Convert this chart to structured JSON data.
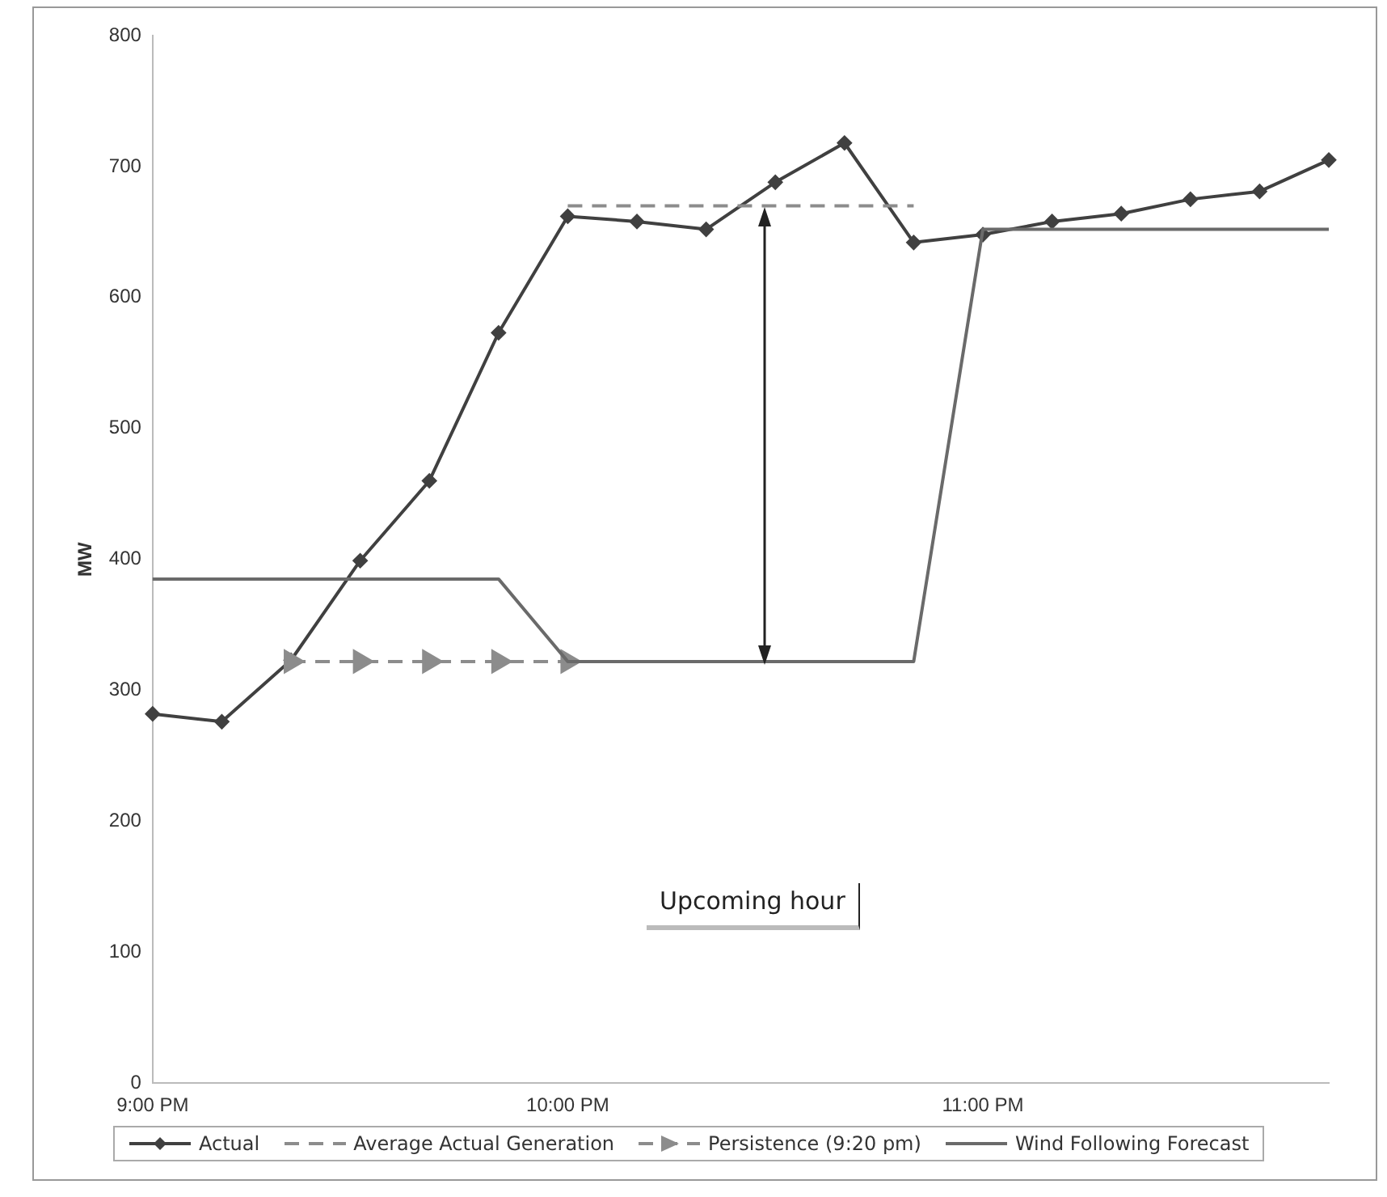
{
  "chart_data": {
    "type": "line",
    "ylabel": "MW",
    "categories": [
      "9:00 PM",
      null,
      null,
      null,
      null,
      null,
      "10:00 PM",
      null,
      null,
      null,
      null,
      null,
      "11:00 PM",
      null,
      null,
      null,
      null,
      null
    ],
    "series": [
      {
        "name": "Actual",
        "color": "#404040",
        "marker": "diamond",
        "line_style": "solid",
        "values": [
          282,
          276,
          323,
          399,
          460,
          573,
          662,
          658,
          652,
          688,
          718,
          642,
          648,
          658,
          664,
          675,
          681,
          705
        ]
      },
      {
        "name": "Average Actual Generation",
        "color": "#8c8c8c",
        "marker": "none",
        "line_style": "dashed",
        "values": [
          null,
          null,
          null,
          null,
          null,
          null,
          670,
          670,
          670,
          670,
          670,
          670,
          null,
          null,
          null,
          null,
          null,
          null
        ]
      },
      {
        "name": "Persistence (9:20 pm)",
        "color": "#8c8c8c",
        "marker": "triangle",
        "line_style": "dashed",
        "values": [
          null,
          null,
          322,
          322,
          322,
          322,
          322,
          null,
          null,
          null,
          null,
          null,
          null,
          null,
          null,
          null,
          null,
          null
        ]
      },
      {
        "name": "Wind Following Forecast",
        "color": "#6a6a6a",
        "marker": "none",
        "line_style": "solid",
        "values": [
          385,
          385,
          385,
          385,
          385,
          385,
          322,
          322,
          322,
          322,
          322,
          322,
          652,
          652,
          652,
          652,
          652,
          652
        ]
      }
    ],
    "ylim": [
      0,
      800
    ],
    "yticks": [
      0,
      100,
      200,
      300,
      400,
      500,
      600,
      700,
      800
    ],
    "grid": false,
    "legend": "bottom",
    "annotations": [
      "Upcoming hour"
    ]
  }
}
